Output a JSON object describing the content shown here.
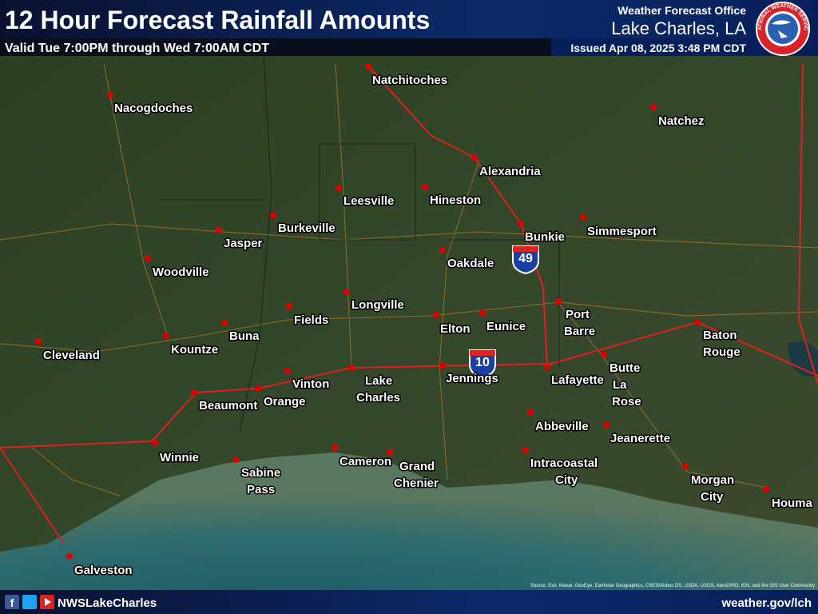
{
  "header": {
    "title": "12 Hour Forecast Rainfall Amounts",
    "valid": "Valid Tue 7:00PM through Wed 7:00AM CDT"
  },
  "office": {
    "line1": "Weather Forecast Office",
    "name": "Lake Charles, LA",
    "issued": "Issued Apr 08, 2025 3:48 PM CDT",
    "logo_text": "NATIONAL WEATHER SERVICE"
  },
  "shields": [
    "49",
    "10"
  ],
  "cities": [
    {
      "lines": [
        "Natchitoches"
      ]
    },
    {
      "lines": [
        "Nacogdoches"
      ]
    },
    {
      "lines": [
        "Natchez"
      ]
    },
    {
      "lines": [
        "Alexandria"
      ]
    },
    {
      "lines": [
        "Leesville"
      ]
    },
    {
      "lines": [
        "Hineston"
      ]
    },
    {
      "lines": [
        "Burkeville"
      ]
    },
    {
      "lines": [
        "Jasper"
      ]
    },
    {
      "lines": [
        "Bunkie"
      ]
    },
    {
      "lines": [
        "Simmesport"
      ]
    },
    {
      "lines": [
        "Woodville"
      ]
    },
    {
      "lines": [
        "Oakdale"
      ]
    },
    {
      "lines": [
        "Longville"
      ]
    },
    {
      "lines": [
        "Fields"
      ]
    },
    {
      "lines": [
        "Port",
        "Barre"
      ]
    },
    {
      "lines": [
        "Elton"
      ]
    },
    {
      "lines": [
        "Eunice"
      ]
    },
    {
      "lines": [
        "Baton",
        "Rouge"
      ]
    },
    {
      "lines": [
        "Cleveland"
      ]
    },
    {
      "lines": [
        "Kountze"
      ]
    },
    {
      "lines": [
        "Buna"
      ]
    },
    {
      "lines": [
        "Butte",
        "La",
        "Rose"
      ]
    },
    {
      "lines": [
        "Vinton"
      ]
    },
    {
      "lines": [
        "Lake",
        "Charles"
      ]
    },
    {
      "lines": [
        "Jennings"
      ]
    },
    {
      "lines": [
        "Lafayette"
      ]
    },
    {
      "lines": [
        "Orange"
      ]
    },
    {
      "lines": [
        "Beaumont"
      ]
    },
    {
      "lines": [
        "Abbeville"
      ]
    },
    {
      "lines": [
        "Jeanerette"
      ]
    },
    {
      "lines": [
        "Winnie"
      ]
    },
    {
      "lines": [
        "Cameron"
      ]
    },
    {
      "lines": [
        "Grand",
        "Chenier"
      ]
    },
    {
      "lines": [
        "Sabine",
        "Pass"
      ]
    },
    {
      "lines": [
        "Intracoastal",
        "City"
      ]
    },
    {
      "lines": [
        "Morgan",
        "City"
      ]
    },
    {
      "lines": [
        "Houma"
      ]
    },
    {
      "lines": [
        "Galveston"
      ]
    }
  ],
  "attribution": "Source: Esri, Maxar, GeoEye, Earthstar Geographics, CNES/Airbus DS, USDA, USGS, AeroGRID, IGN, and the GIS User Community",
  "footer": {
    "social": "NWSLakeCharles",
    "url": "weather.gov/lch"
  }
}
